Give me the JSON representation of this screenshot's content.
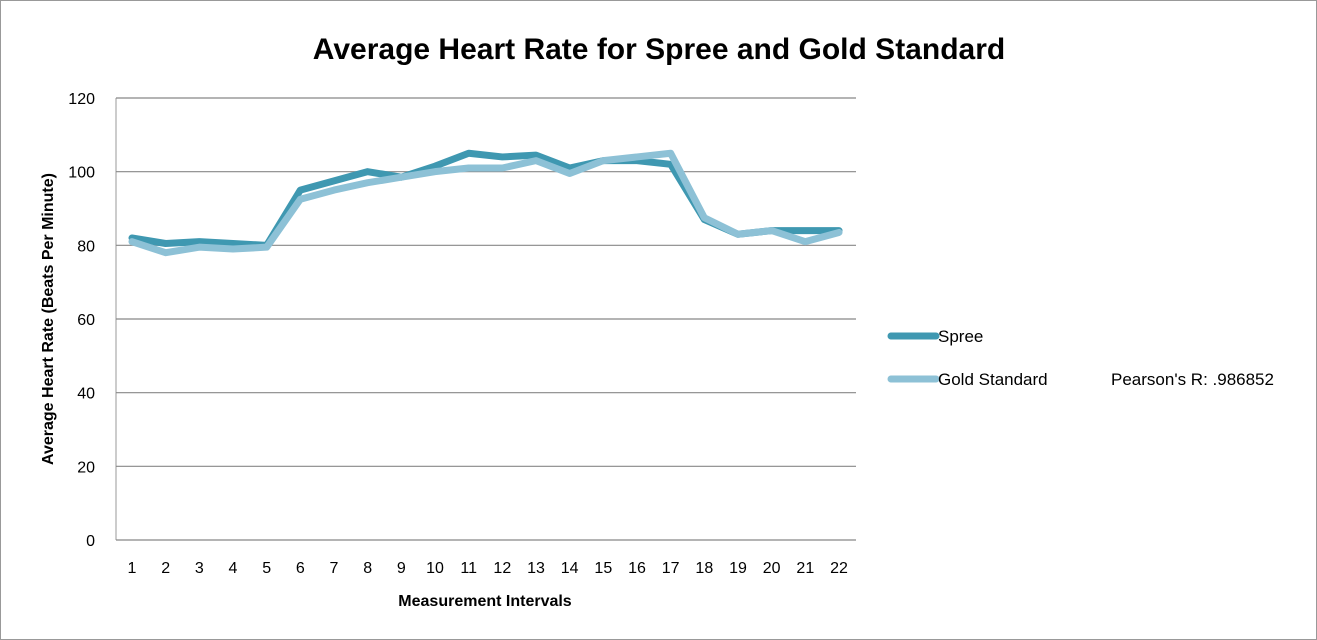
{
  "chart_data": {
    "type": "line",
    "title": "Average Heart Rate for Spree and Gold Standard",
    "xlabel": "Measurement Intervals",
    "ylabel": "Average Heart Rate (Beats Per Minute)",
    "x": [
      1,
      2,
      3,
      4,
      5,
      6,
      7,
      8,
      9,
      10,
      11,
      12,
      13,
      14,
      15,
      16,
      17,
      18,
      19,
      20,
      21,
      22
    ],
    "ylim": [
      0,
      120
    ],
    "yticks": [
      0,
      20,
      40,
      60,
      80,
      100,
      120
    ],
    "grid": true,
    "legend_position": "right",
    "annotation": "Pearson's R: .986852",
    "series": [
      {
        "name": "Spree",
        "color": "#3f98b1",
        "values": [
          82,
          80.5,
          81,
          80.5,
          80,
          95,
          97.5,
          100,
          98.5,
          101.5,
          105,
          104,
          104.5,
          101,
          103,
          103,
          102,
          87,
          83,
          84,
          84,
          84
        ]
      },
      {
        "name": "Gold Standard",
        "color": "#8dc1d6",
        "values": [
          81,
          78,
          79.5,
          79,
          79.5,
          92.5,
          95,
          97,
          98.5,
          100,
          101,
          101,
          103,
          99.5,
          103,
          104,
          105,
          87.5,
          83,
          84,
          81,
          83.5
        ]
      }
    ]
  }
}
